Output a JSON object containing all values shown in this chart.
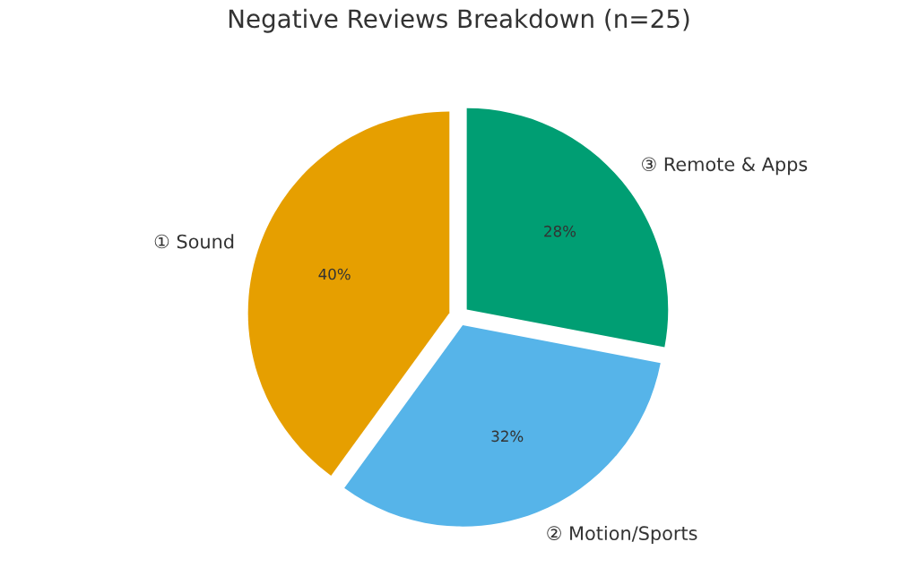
{
  "chart_data": {
    "type": "pie",
    "title": "Negative Reviews Breakdown (n=25)",
    "categories": [
      "① Sound",
      "② Motion/Sports",
      "③ Remote & Apps"
    ],
    "values": [
      40,
      32,
      28
    ],
    "value_labels": [
      "40%",
      "32%",
      "28%"
    ],
    "colors": [
      "#e69f00",
      "#56b4e9",
      "#009e73"
    ],
    "legend": false
  }
}
